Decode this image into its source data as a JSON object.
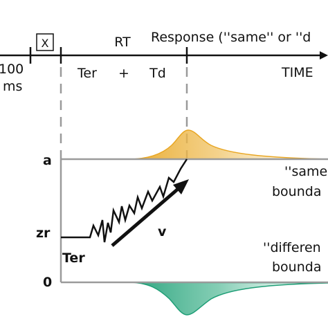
{
  "timeline": {
    "left_value": "100",
    "left_unit": "ms",
    "stimulus_box": "X",
    "rt_label": "RT",
    "response_label": "Response (''same'' or ''d",
    "ter_label": "Ter",
    "plus_label": "+",
    "td_label": "Td",
    "time_label": "TIME"
  },
  "model": {
    "upper_boundary_label": "a",
    "start_point_label": "zr",
    "lower_boundary_label": "0",
    "ter_label": "Ter",
    "drift_label": "v",
    "same_boundary_line1": "''same",
    "same_boundary_line2": "bounda",
    "different_boundary_line1": "''differen",
    "different_boundary_line2": "bounda"
  },
  "colors": {
    "same_distribution": "#e8a623",
    "different_distribution": "#1e9e76",
    "boundary_line": "#9a9a9a",
    "dashed_line": "#9a9a9a",
    "ink": "#111111"
  }
}
